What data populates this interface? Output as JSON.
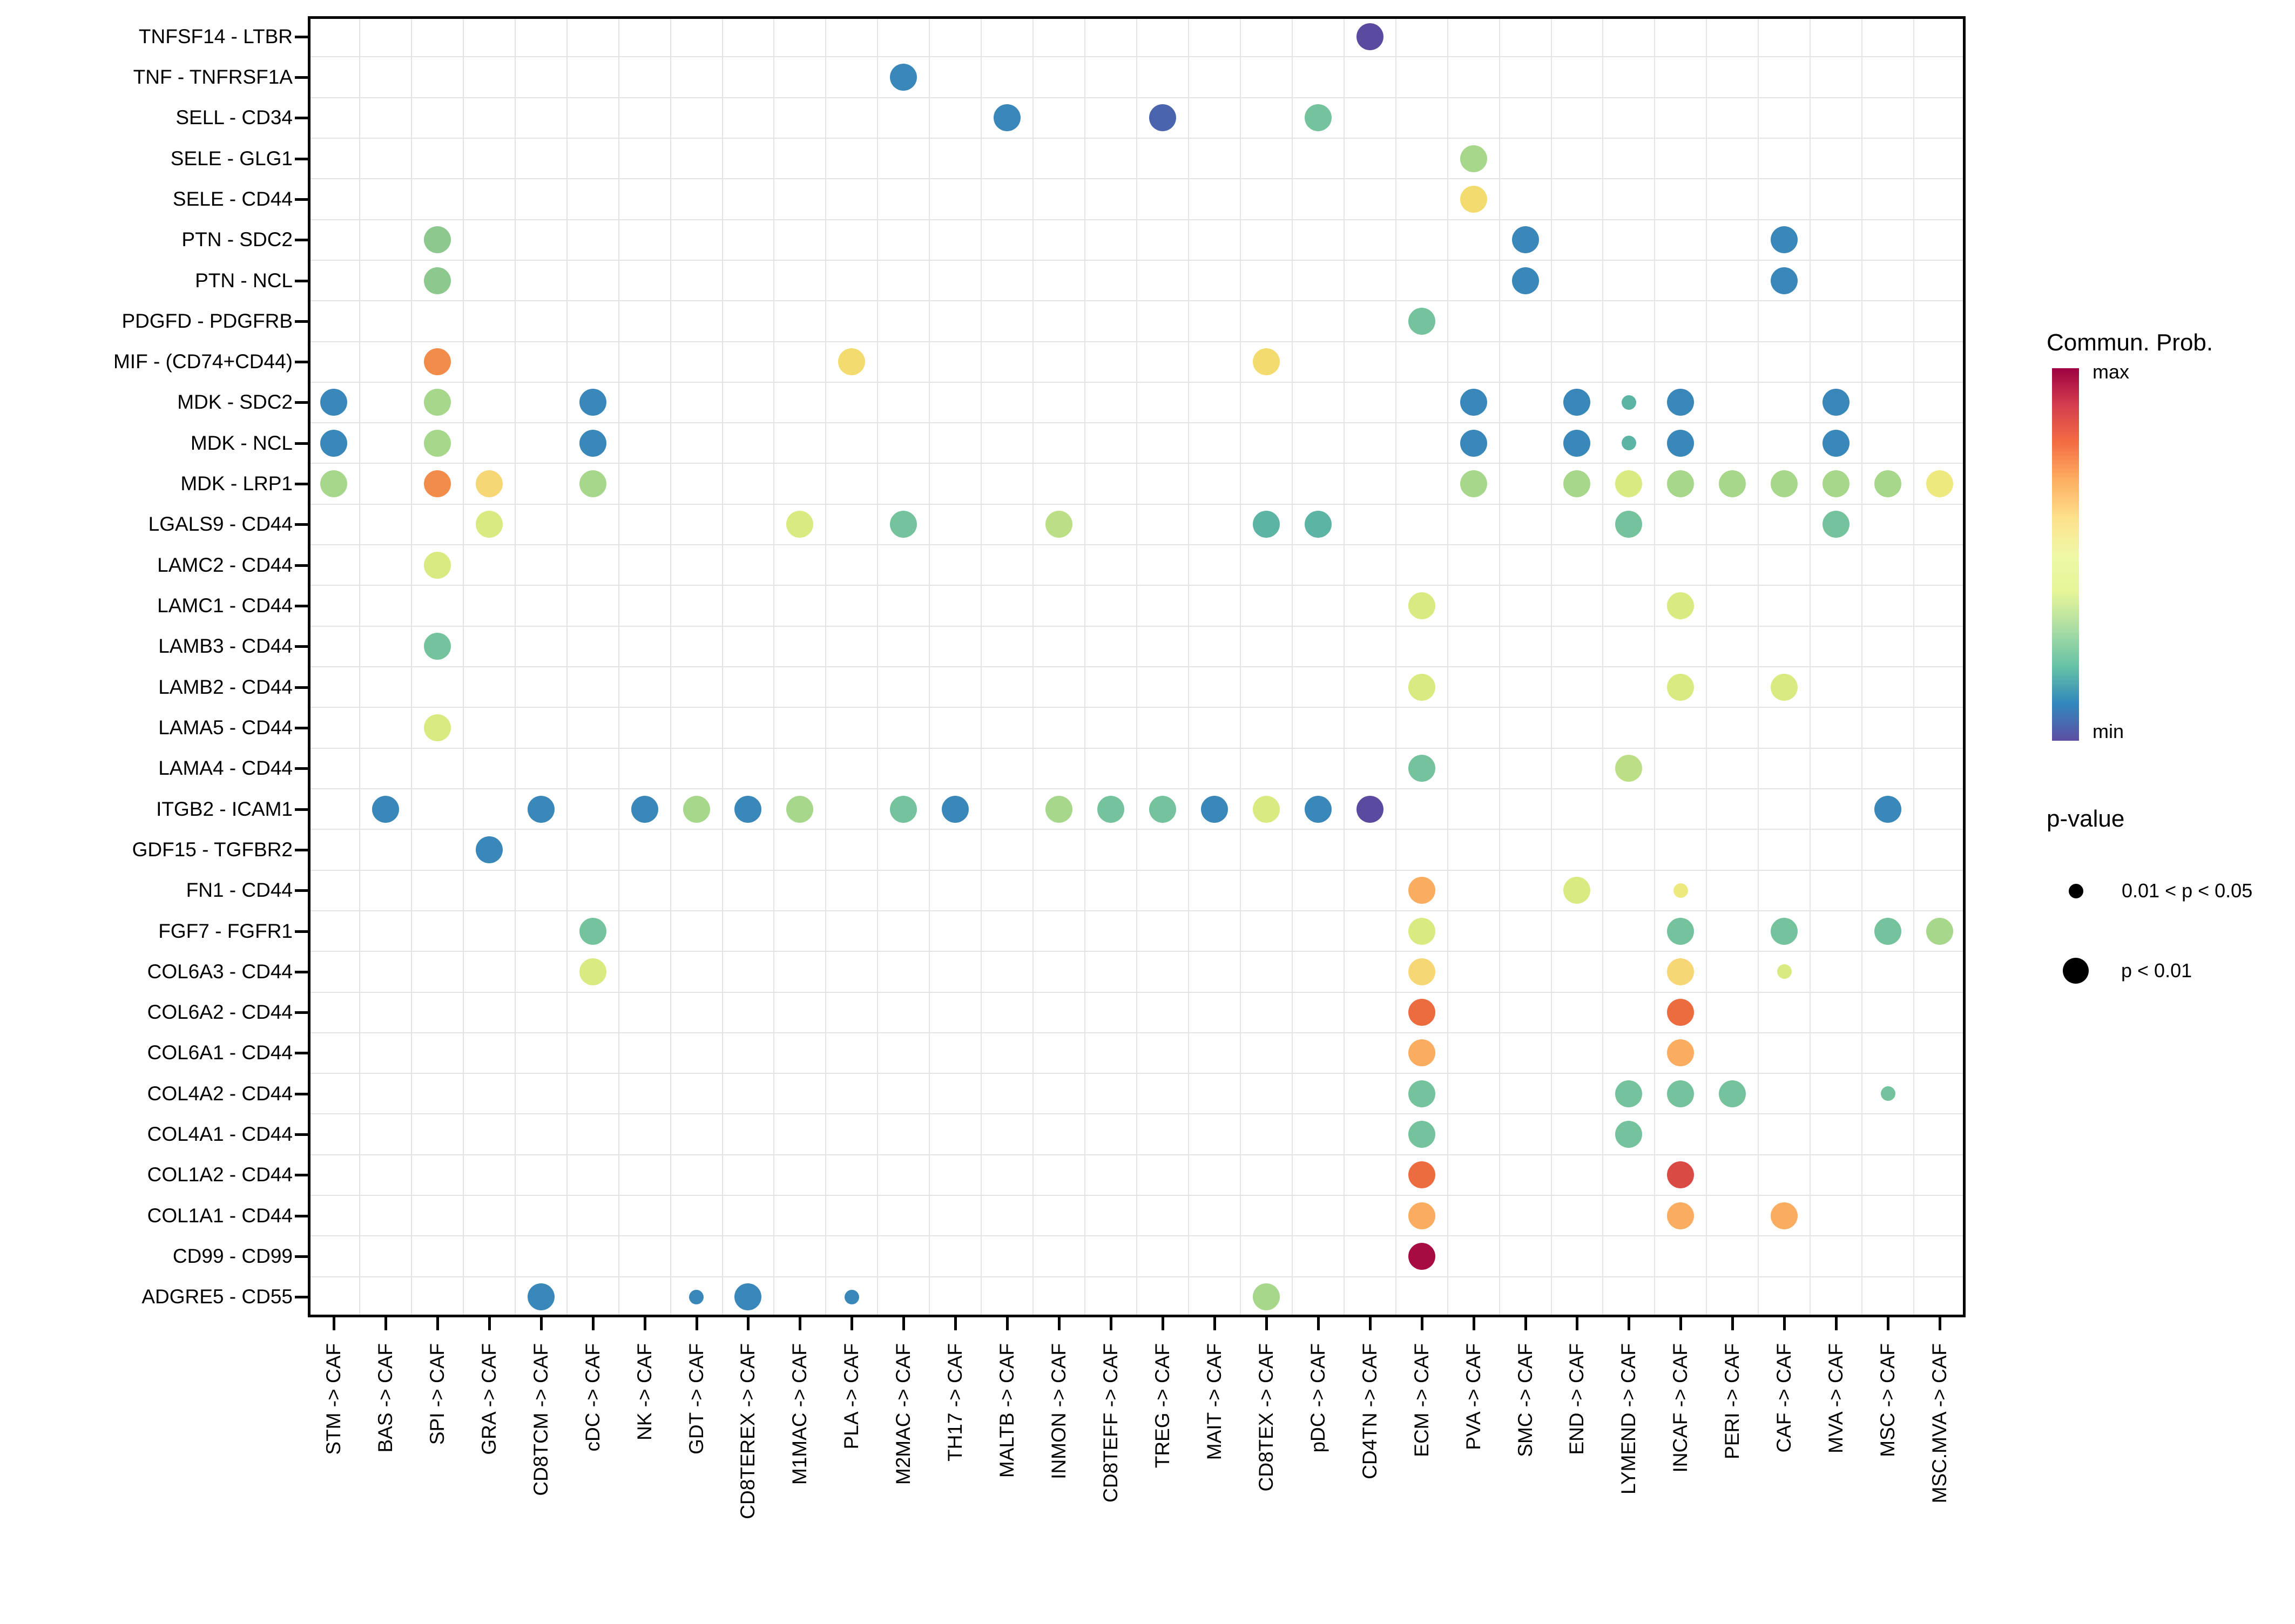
{
  "chart_data": {
    "type": "scatter",
    "subtype": "dotplot-bubble",
    "title": "",
    "xlabel": "",
    "ylabel": "",
    "grid": "on",
    "y_categories": [
      "TNFSF14 - LTBR",
      "TNF - TNFRSF1A",
      "SELL - CD34",
      "SELE - GLG1",
      "SELE - CD44",
      "PTN - SDC2",
      "PTN - NCL",
      "PDGFD - PDGFRB",
      "MIF - (CD74+CD44)",
      "MDK - SDC2",
      "MDK - NCL",
      "MDK - LRP1",
      "LGALS9 - CD44",
      "LAMC2 - CD44",
      "LAMC1 - CD44",
      "LAMB3 - CD44",
      "LAMB2 - CD44",
      "LAMA5 - CD44",
      "LAMA4 - CD44",
      "ITGB2 - ICAM1",
      "GDF15 - TGFBR2",
      "FN1 - CD44",
      "FGF7 - FGFR1",
      "COL6A3 - CD44",
      "COL6A2 - CD44",
      "COL6A1 - CD44",
      "COL4A2 - CD44",
      "COL4A1 - CD44",
      "COL1A2 - CD44",
      "COL1A1 - CD44",
      "CD99 - CD99",
      "ADGRE5 - CD55"
    ],
    "x_categories": [
      "STM -> CAF",
      "BAS -> CAF",
      "SPI -> CAF",
      "GRA -> CAF",
      "CD8TCM -> CAF",
      "cDC -> CAF",
      "NK -> CAF",
      "GDT -> CAF",
      "CD8TEREX -> CAF",
      "M1MAC -> CAF",
      "PLA -> CAF",
      "M2MAC -> CAF",
      "TH17 -> CAF",
      "MALTB -> CAF",
      "INMON -> CAF",
      "CD8TEFF -> CAF",
      "TREG -> CAF",
      "MAIT -> CAF",
      "CD8TEX -> CAF",
      "pDC -> CAF",
      "CD4TN -> CAF",
      "ECM -> CAF",
      "PVA -> CAF",
      "SMC -> CAF",
      "END -> CAF",
      "LYMEND -> CAF",
      "INCAF -> CAF",
      "PERI -> CAF",
      "CAF -> CAF",
      "MVA -> CAF",
      "MSC -> CAF",
      "MSC.MVA -> CAF"
    ],
    "palette": {
      "blue": "#3A87BA",
      "indigo": "#4A64AE",
      "purple": "#5B4A9F",
      "teal": "#5BB4A4",
      "seagreen": "#74C39D",
      "green": "#8DC98F",
      "lightgreen": "#A6D78A",
      "palegreen": "#BCDF86",
      "yellowgreen": "#D9EA80",
      "paleyellow": "#EDE97E",
      "yellow": "#F3DC6F",
      "yelloworange": "#F7D775",
      "orange": "#FAAD60",
      "vividorange": "#F28C4B",
      "redorange": "#EC6C3F",
      "red": "#D94A45",
      "crimson": "#A60C43"
    },
    "dot_sizes_px": {
      "L": 50,
      "S": 27
    },
    "dots": [
      [
        "TNFSF14 - LTBR",
        "CD4TN -> CAF",
        "purple",
        "L"
      ],
      [
        "TNF - TNFRSF1A",
        "M2MAC -> CAF",
        "blue",
        "L"
      ],
      [
        "SELL - CD34",
        "MALTB -> CAF",
        "blue",
        "L"
      ],
      [
        "SELL - CD34",
        "TREG -> CAF",
        "indigo",
        "L"
      ],
      [
        "SELL - CD34",
        "pDC -> CAF",
        "seagreen",
        "L"
      ],
      [
        "SELE - GLG1",
        "PVA -> CAF",
        "lightgreen",
        "L"
      ],
      [
        "SELE - CD44",
        "PVA -> CAF",
        "yellow",
        "L"
      ],
      [
        "PTN - SDC2",
        "SPI -> CAF",
        "green",
        "L"
      ],
      [
        "PTN - SDC2",
        "SMC -> CAF",
        "blue",
        "L"
      ],
      [
        "PTN - SDC2",
        "CAF -> CAF",
        "blue",
        "L"
      ],
      [
        "PTN - NCL",
        "SPI -> CAF",
        "green",
        "L"
      ],
      [
        "PTN - NCL",
        "SMC -> CAF",
        "blue",
        "L"
      ],
      [
        "PTN - NCL",
        "CAF -> CAF",
        "blue",
        "L"
      ],
      [
        "PDGFD - PDGFRB",
        "ECM -> CAF",
        "seagreen",
        "L"
      ],
      [
        "MIF - (CD74+CD44)",
        "SPI -> CAF",
        "vividorange",
        "L"
      ],
      [
        "MIF - (CD74+CD44)",
        "PLA -> CAF",
        "yellow",
        "L"
      ],
      [
        "MIF - (CD74+CD44)",
        "CD8TEX -> CAF",
        "yellow",
        "L"
      ],
      [
        "MDK - SDC2",
        "STM -> CAF",
        "blue",
        "L"
      ],
      [
        "MDK - SDC2",
        "SPI -> CAF",
        "lightgreen",
        "L"
      ],
      [
        "MDK - SDC2",
        "cDC -> CAF",
        "blue",
        "L"
      ],
      [
        "MDK - SDC2",
        "PVA -> CAF",
        "blue",
        "L"
      ],
      [
        "MDK - SDC2",
        "END -> CAF",
        "blue",
        "L"
      ],
      [
        "MDK - SDC2",
        "LYMEND -> CAF",
        "teal",
        "S"
      ],
      [
        "MDK - SDC2",
        "INCAF -> CAF",
        "blue",
        "L"
      ],
      [
        "MDK - SDC2",
        "MVA -> CAF",
        "blue",
        "L"
      ],
      [
        "MDK - NCL",
        "STM -> CAF",
        "blue",
        "L"
      ],
      [
        "MDK - NCL",
        "SPI -> CAF",
        "lightgreen",
        "L"
      ],
      [
        "MDK - NCL",
        "cDC -> CAF",
        "blue",
        "L"
      ],
      [
        "MDK - NCL",
        "PVA -> CAF",
        "blue",
        "L"
      ],
      [
        "MDK - NCL",
        "END -> CAF",
        "blue",
        "L"
      ],
      [
        "MDK - NCL",
        "LYMEND -> CAF",
        "teal",
        "S"
      ],
      [
        "MDK - NCL",
        "INCAF -> CAF",
        "blue",
        "L"
      ],
      [
        "MDK - NCL",
        "MVA -> CAF",
        "blue",
        "L"
      ],
      [
        "MDK - LRP1",
        "STM -> CAF",
        "lightgreen",
        "L"
      ],
      [
        "MDK - LRP1",
        "SPI -> CAF",
        "vividorange",
        "L"
      ],
      [
        "MDK - LRP1",
        "GRA -> CAF",
        "yelloworange",
        "L"
      ],
      [
        "MDK - LRP1",
        "cDC -> CAF",
        "lightgreen",
        "L"
      ],
      [
        "MDK - LRP1",
        "PVA -> CAF",
        "lightgreen",
        "L"
      ],
      [
        "MDK - LRP1",
        "END -> CAF",
        "lightgreen",
        "L"
      ],
      [
        "MDK - LRP1",
        "LYMEND -> CAF",
        "yellowgreen",
        "L"
      ],
      [
        "MDK - LRP1",
        "INCAF -> CAF",
        "lightgreen",
        "L"
      ],
      [
        "MDK - LRP1",
        "PERI -> CAF",
        "lightgreen",
        "L"
      ],
      [
        "MDK - LRP1",
        "CAF -> CAF",
        "lightgreen",
        "L"
      ],
      [
        "MDK - LRP1",
        "MVA -> CAF",
        "lightgreen",
        "L"
      ],
      [
        "MDK - LRP1",
        "MSC -> CAF",
        "lightgreen",
        "L"
      ],
      [
        "MDK - LRP1",
        "MSC.MVA -> CAF",
        "paleyellow",
        "L"
      ],
      [
        "LGALS9 - CD44",
        "GRA -> CAF",
        "yellowgreen",
        "L"
      ],
      [
        "LGALS9 - CD44",
        "M1MAC -> CAF",
        "yellowgreen",
        "L"
      ],
      [
        "LGALS9 - CD44",
        "M2MAC -> CAF",
        "seagreen",
        "L"
      ],
      [
        "LGALS9 - CD44",
        "INMON -> CAF",
        "palegreen",
        "L"
      ],
      [
        "LGALS9 - CD44",
        "CD8TEX -> CAF",
        "teal",
        "L"
      ],
      [
        "LGALS9 - CD44",
        "pDC -> CAF",
        "teal",
        "L"
      ],
      [
        "LGALS9 - CD44",
        "LYMEND -> CAF",
        "seagreen",
        "L"
      ],
      [
        "LGALS9 - CD44",
        "MVA -> CAF",
        "seagreen",
        "L"
      ],
      [
        "LAMC2 - CD44",
        "SPI -> CAF",
        "yellowgreen",
        "L"
      ],
      [
        "LAMC1 - CD44",
        "ECM -> CAF",
        "yellowgreen",
        "L"
      ],
      [
        "LAMC1 - CD44",
        "INCAF -> CAF",
        "yellowgreen",
        "L"
      ],
      [
        "LAMB3 - CD44",
        "SPI -> CAF",
        "seagreen",
        "L"
      ],
      [
        "LAMB2 - CD44",
        "ECM -> CAF",
        "yellowgreen",
        "L"
      ],
      [
        "LAMB2 - CD44",
        "INCAF -> CAF",
        "yellowgreen",
        "L"
      ],
      [
        "LAMB2 - CD44",
        "CAF -> CAF",
        "yellowgreen",
        "L"
      ],
      [
        "LAMA5 - CD44",
        "SPI -> CAF",
        "yellowgreen",
        "L"
      ],
      [
        "LAMA4 - CD44",
        "ECM -> CAF",
        "seagreen",
        "L"
      ],
      [
        "LAMA4 - CD44",
        "LYMEND -> CAF",
        "palegreen",
        "L"
      ],
      [
        "ITGB2 - ICAM1",
        "BAS -> CAF",
        "blue",
        "L"
      ],
      [
        "ITGB2 - ICAM1",
        "CD8TCM -> CAF",
        "blue",
        "L"
      ],
      [
        "ITGB2 - ICAM1",
        "NK -> CAF",
        "blue",
        "L"
      ],
      [
        "ITGB2 - ICAM1",
        "GDT -> CAF",
        "lightgreen",
        "L"
      ],
      [
        "ITGB2 - ICAM1",
        "CD8TEREX -> CAF",
        "blue",
        "L"
      ],
      [
        "ITGB2 - ICAM1",
        "M1MAC -> CAF",
        "lightgreen",
        "L"
      ],
      [
        "ITGB2 - ICAM1",
        "M2MAC -> CAF",
        "seagreen",
        "L"
      ],
      [
        "ITGB2 - ICAM1",
        "TH17 -> CAF",
        "blue",
        "L"
      ],
      [
        "ITGB2 - ICAM1",
        "INMON -> CAF",
        "lightgreen",
        "L"
      ],
      [
        "ITGB2 - ICAM1",
        "CD8TEFF -> CAF",
        "seagreen",
        "L"
      ],
      [
        "ITGB2 - ICAM1",
        "TREG -> CAF",
        "seagreen",
        "L"
      ],
      [
        "ITGB2 - ICAM1",
        "MAIT -> CAF",
        "blue",
        "L"
      ],
      [
        "ITGB2 - ICAM1",
        "CD8TEX -> CAF",
        "yellowgreen",
        "L"
      ],
      [
        "ITGB2 - ICAM1",
        "pDC -> CAF",
        "blue",
        "L"
      ],
      [
        "ITGB2 - ICAM1",
        "CD4TN -> CAF",
        "purple",
        "L"
      ],
      [
        "ITGB2 - ICAM1",
        "MSC -> CAF",
        "blue",
        "L"
      ],
      [
        "GDF15 - TGFBR2",
        "GRA -> CAF",
        "blue",
        "L"
      ],
      [
        "FN1 - CD44",
        "ECM -> CAF",
        "orange",
        "L"
      ],
      [
        "FN1 - CD44",
        "END -> CAF",
        "yellowgreen",
        "L"
      ],
      [
        "FN1 - CD44",
        "INCAF -> CAF",
        "paleyellow",
        "S"
      ],
      [
        "FGF7 - FGFR1",
        "cDC -> CAF",
        "seagreen",
        "L"
      ],
      [
        "FGF7 - FGFR1",
        "ECM -> CAF",
        "yellowgreen",
        "L"
      ],
      [
        "FGF7 - FGFR1",
        "INCAF -> CAF",
        "seagreen",
        "L"
      ],
      [
        "FGF7 - FGFR1",
        "CAF -> CAF",
        "seagreen",
        "L"
      ],
      [
        "FGF7 - FGFR1",
        "MSC -> CAF",
        "seagreen",
        "L"
      ],
      [
        "FGF7 - FGFR1",
        "MSC.MVA -> CAF",
        "lightgreen",
        "L"
      ],
      [
        "COL6A3 - CD44",
        "cDC -> CAF",
        "yellowgreen",
        "L"
      ],
      [
        "COL6A3 - CD44",
        "ECM -> CAF",
        "yelloworange",
        "L"
      ],
      [
        "COL6A3 - CD44",
        "INCAF -> CAF",
        "yelloworange",
        "L"
      ],
      [
        "COL6A3 - CD44",
        "CAF -> CAF",
        "yellowgreen",
        "S"
      ],
      [
        "COL6A2 - CD44",
        "ECM -> CAF",
        "redorange",
        "L"
      ],
      [
        "COL6A2 - CD44",
        "INCAF -> CAF",
        "redorange",
        "L"
      ],
      [
        "COL6A1 - CD44",
        "ECM -> CAF",
        "orange",
        "L"
      ],
      [
        "COL6A1 - CD44",
        "INCAF -> CAF",
        "orange",
        "L"
      ],
      [
        "COL4A2 - CD44",
        "ECM -> CAF",
        "seagreen",
        "L"
      ],
      [
        "COL4A2 - CD44",
        "LYMEND -> CAF",
        "seagreen",
        "L"
      ],
      [
        "COL4A2 - CD44",
        "INCAF -> CAF",
        "seagreen",
        "L"
      ],
      [
        "COL4A2 - CD44",
        "PERI -> CAF",
        "seagreen",
        "L"
      ],
      [
        "COL4A2 - CD44",
        "MSC -> CAF",
        "seagreen",
        "S"
      ],
      [
        "COL4A1 - CD44",
        "ECM -> CAF",
        "seagreen",
        "L"
      ],
      [
        "COL4A1 - CD44",
        "LYMEND -> CAF",
        "seagreen",
        "L"
      ],
      [
        "COL1A2 - CD44",
        "ECM -> CAF",
        "redorange",
        "L"
      ],
      [
        "COL1A2 - CD44",
        "INCAF -> CAF",
        "red",
        "L"
      ],
      [
        "COL1A1 - CD44",
        "ECM -> CAF",
        "orange",
        "L"
      ],
      [
        "COL1A1 - CD44",
        "INCAF -> CAF",
        "orange",
        "L"
      ],
      [
        "COL1A1 - CD44",
        "CAF -> CAF",
        "orange",
        "L"
      ],
      [
        "CD99 - CD99",
        "ECM -> CAF",
        "crimson",
        "L"
      ],
      [
        "ADGRE5 - CD55",
        "CD8TCM -> CAF",
        "blue",
        "L"
      ],
      [
        "ADGRE5 - CD55",
        "GDT -> CAF",
        "blue",
        "S"
      ],
      [
        "ADGRE5 - CD55",
        "CD8TEREX -> CAF",
        "blue",
        "L"
      ],
      [
        "ADGRE5 - CD55",
        "PLA -> CAF",
        "blue",
        "S"
      ],
      [
        "ADGRE5 - CD55",
        "CD8TEX -> CAF",
        "lightgreen",
        "L"
      ]
    ],
    "color_legend": {
      "title": "Commun. Prob.",
      "max_label": "max",
      "min_label": "min",
      "gradient_top_to_bottom": [
        "#9E0142",
        "#D53E4F",
        "#F46D43",
        "#FDAE61",
        "#FEE08B",
        "#EFF8A6",
        "#E6F598",
        "#ABDDA4",
        "#66C2A5",
        "#3288BD",
        "#5E4FA2"
      ]
    },
    "size_legend": {
      "title": "p-value",
      "items": [
        {
          "label": "0.01 < p < 0.05",
          "size": "small"
        },
        {
          "label": "p < 0.01",
          "size": "large"
        }
      ]
    }
  }
}
